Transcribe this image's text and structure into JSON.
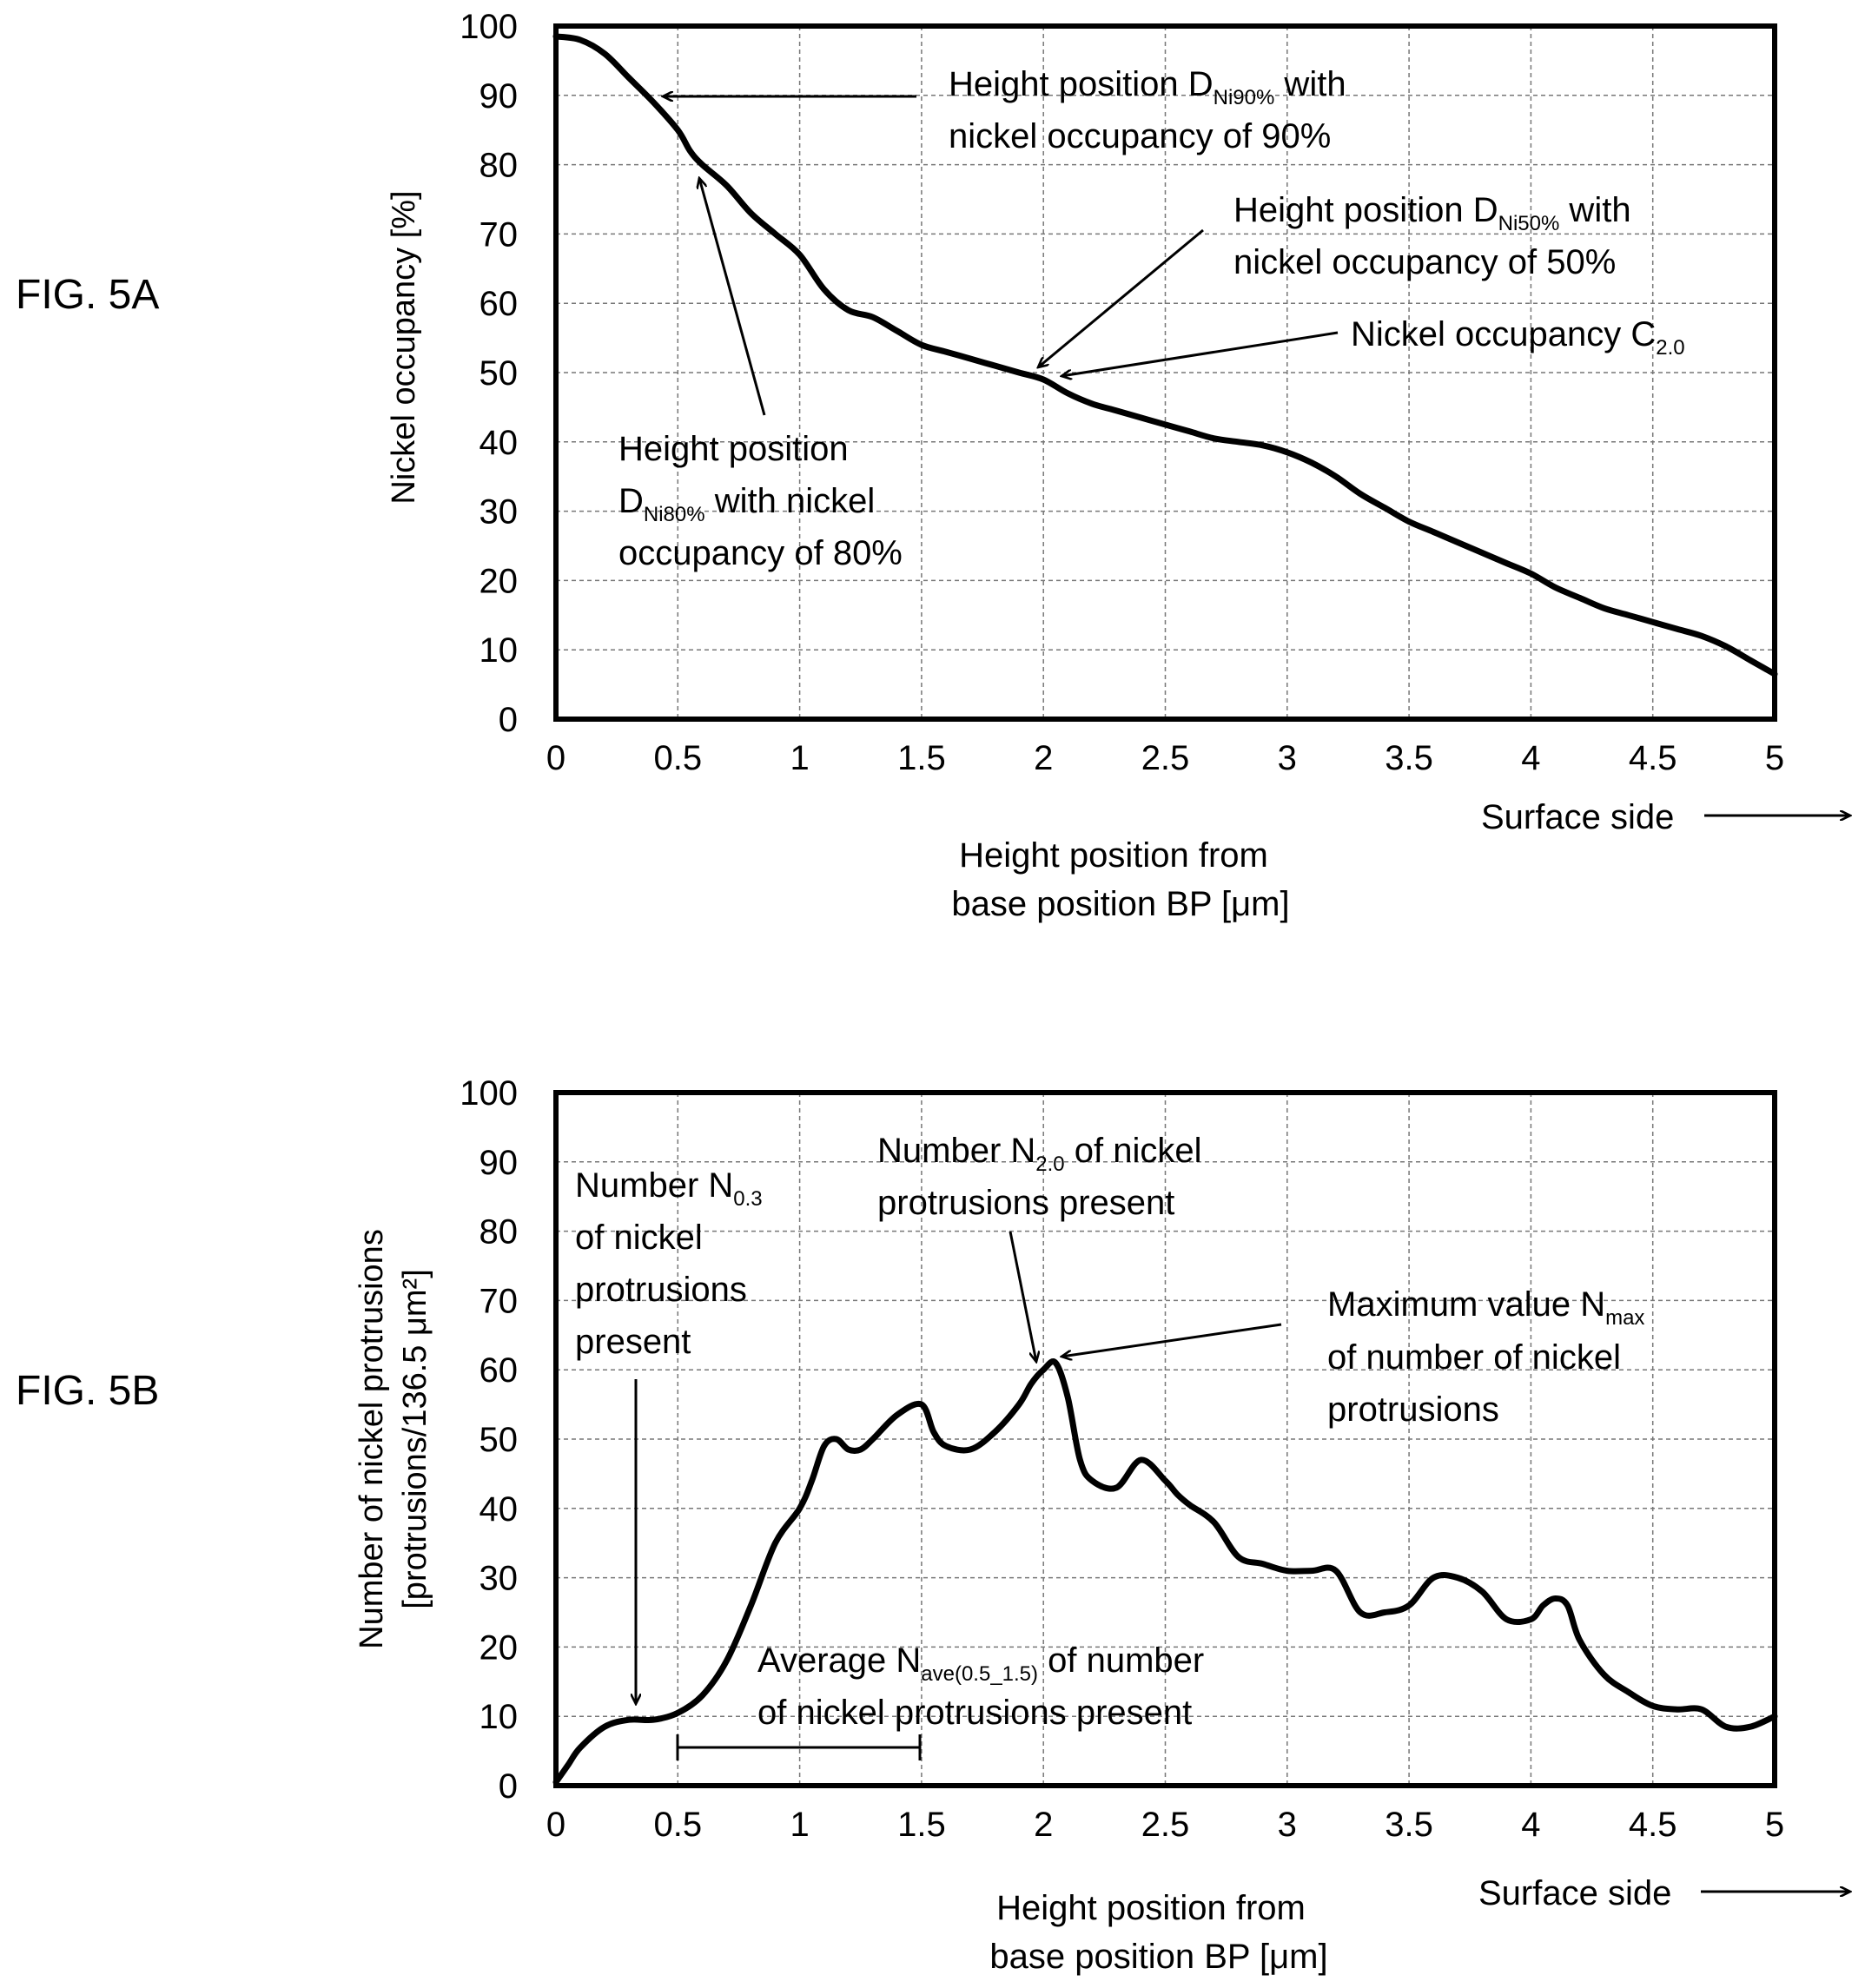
{
  "figures": [
    {
      "label": "FIG. 5A",
      "ylabel_lines": [
        "Nickel occupancy [%]"
      ],
      "xlabel_lines": [
        "Height position from",
        "base position BP [μm]"
      ],
      "surface_side": "Surface side",
      "annotations": {
        "d90_line1": {
          "pre": "Height position D",
          "sub": "Ni90%",
          "post": " with"
        },
        "d90_line2": "nickel occupancy of 90%",
        "d50_line1": {
          "pre": "Height position D",
          "sub": "Ni50%",
          "post": " with"
        },
        "d50_line2": "nickel occupancy of 50%",
        "c20": {
          "pre": "Nickel occupancy C",
          "sub": "2.0",
          "post": ""
        },
        "d80_line1": "Height position",
        "d80_line2": {
          "pre": "D",
          "sub": "Ni80%",
          "post": " with nickel"
        },
        "d80_line3": "occupancy of 80%"
      }
    },
    {
      "label": "FIG. 5B",
      "ylabel_lines": [
        "Number of nickel protrusions",
        "[protrusions/136.5 μm²]"
      ],
      "xlabel_lines": [
        "Height position from",
        "base position BP [μm]"
      ],
      "surface_side": "Surface side",
      "annotations": {
        "n03_line1": {
          "pre": "Number N",
          "sub": "0.3",
          "post": ""
        },
        "n03_line2": "of nickel",
        "n03_line3": "protrusions",
        "n03_line4": "present",
        "n20_line1": {
          "pre": "Number N",
          "sub": "2.0",
          "post": " of nickel"
        },
        "n20_line2": "protrusions present",
        "nmax_line1": {
          "pre": "Maximum value N",
          "sub": "max",
          "post": ""
        },
        "nmax_line2": "of number of nickel",
        "nmax_line3": "protrusions",
        "nave_line1": {
          "pre": "Average N",
          "sub": "ave(0.5_1.5)",
          "post": " of number"
        },
        "nave_line2": "of nickel protrusions present"
      }
    }
  ],
  "chart_data": [
    {
      "type": "line",
      "xlim": [
        0,
        5
      ],
      "ylim": [
        0,
        100
      ],
      "xticks": [
        "0",
        "0.5",
        "1",
        "1.5",
        "2",
        "2.5",
        "3",
        "3.5",
        "4",
        "4.5",
        "5"
      ],
      "yticks": [
        "0",
        "10",
        "20",
        "30",
        "40",
        "50",
        "60",
        "70",
        "80",
        "90",
        "100"
      ],
      "grid": true,
      "series": [
        {
          "x": [
            0,
            0.1,
            0.2,
            0.3,
            0.4,
            0.5,
            0.55,
            0.6,
            0.7,
            0.8,
            0.9,
            1.0,
            1.1,
            1.2,
            1.3,
            1.4,
            1.5,
            1.6,
            1.7,
            1.8,
            1.9,
            2.0,
            2.1,
            2.2,
            2.3,
            2.4,
            2.5,
            2.6,
            2.7,
            2.8,
            2.9,
            3.0,
            3.1,
            3.2,
            3.3,
            3.4,
            3.5,
            3.6,
            3.7,
            3.8,
            3.9,
            4.0,
            4.1,
            4.2,
            4.3,
            4.4,
            4.5,
            4.6,
            4.7,
            4.8,
            4.9,
            5.0
          ],
          "y": [
            98.5,
            98,
            96,
            92.5,
            89,
            85,
            82,
            80,
            77,
            73,
            70,
            67,
            62,
            59,
            58,
            56,
            54,
            53,
            52,
            51,
            50,
            49,
            47,
            45.5,
            44.5,
            43.5,
            42.5,
            41.5,
            40.5,
            40,
            39.5,
            38.5,
            37,
            35,
            32.5,
            30.5,
            28.5,
            27,
            25.5,
            24,
            22.5,
            21,
            19,
            17.5,
            16,
            15,
            14,
            13,
            12,
            10.5,
            8.5,
            6.5
          ]
        }
      ]
    },
    {
      "type": "line",
      "xlim": [
        0,
        5
      ],
      "ylim": [
        0,
        100
      ],
      "xticks": [
        "0",
        "0.5",
        "1",
        "1.5",
        "2",
        "2.5",
        "3",
        "3.5",
        "4",
        "4.5",
        "5"
      ],
      "yticks": [
        "0",
        "10",
        "20",
        "30",
        "40",
        "50",
        "60",
        "70",
        "80",
        "90",
        "100"
      ],
      "grid": true,
      "series": [
        {
          "x": [
            0,
            0.05,
            0.1,
            0.2,
            0.3,
            0.4,
            0.5,
            0.6,
            0.7,
            0.8,
            0.9,
            1.0,
            1.05,
            1.1,
            1.15,
            1.2,
            1.25,
            1.3,
            1.4,
            1.5,
            1.55,
            1.6,
            1.7,
            1.8,
            1.9,
            1.95,
            2.0,
            2.05,
            2.1,
            2.15,
            2.2,
            2.3,
            2.4,
            2.5,
            2.55,
            2.6,
            2.7,
            2.8,
            2.9,
            3.0,
            3.1,
            3.2,
            3.3,
            3.4,
            3.5,
            3.6,
            3.7,
            3.8,
            3.9,
            4.0,
            4.05,
            4.1,
            4.15,
            4.2,
            4.3,
            4.4,
            4.5,
            4.6,
            4.7,
            4.8,
            4.9,
            5.0
          ],
          "y": [
            0.5,
            3,
            5.5,
            8.5,
            9.5,
            9.5,
            10.5,
            13,
            18,
            26,
            35,
            40,
            44,
            49,
            50,
            48.5,
            48.5,
            50,
            53.5,
            55,
            51,
            49,
            48.5,
            51,
            55,
            58,
            60,
            61,
            56,
            47,
            44,
            43,
            47,
            44,
            42,
            40.5,
            38,
            33,
            32,
            31,
            31,
            31,
            25,
            25,
            26,
            30,
            30,
            28,
            24,
            24,
            26,
            27,
            26,
            21,
            16,
            13.5,
            11.5,
            11,
            11,
            8.5,
            8.5,
            10
          ]
        }
      ]
    }
  ]
}
